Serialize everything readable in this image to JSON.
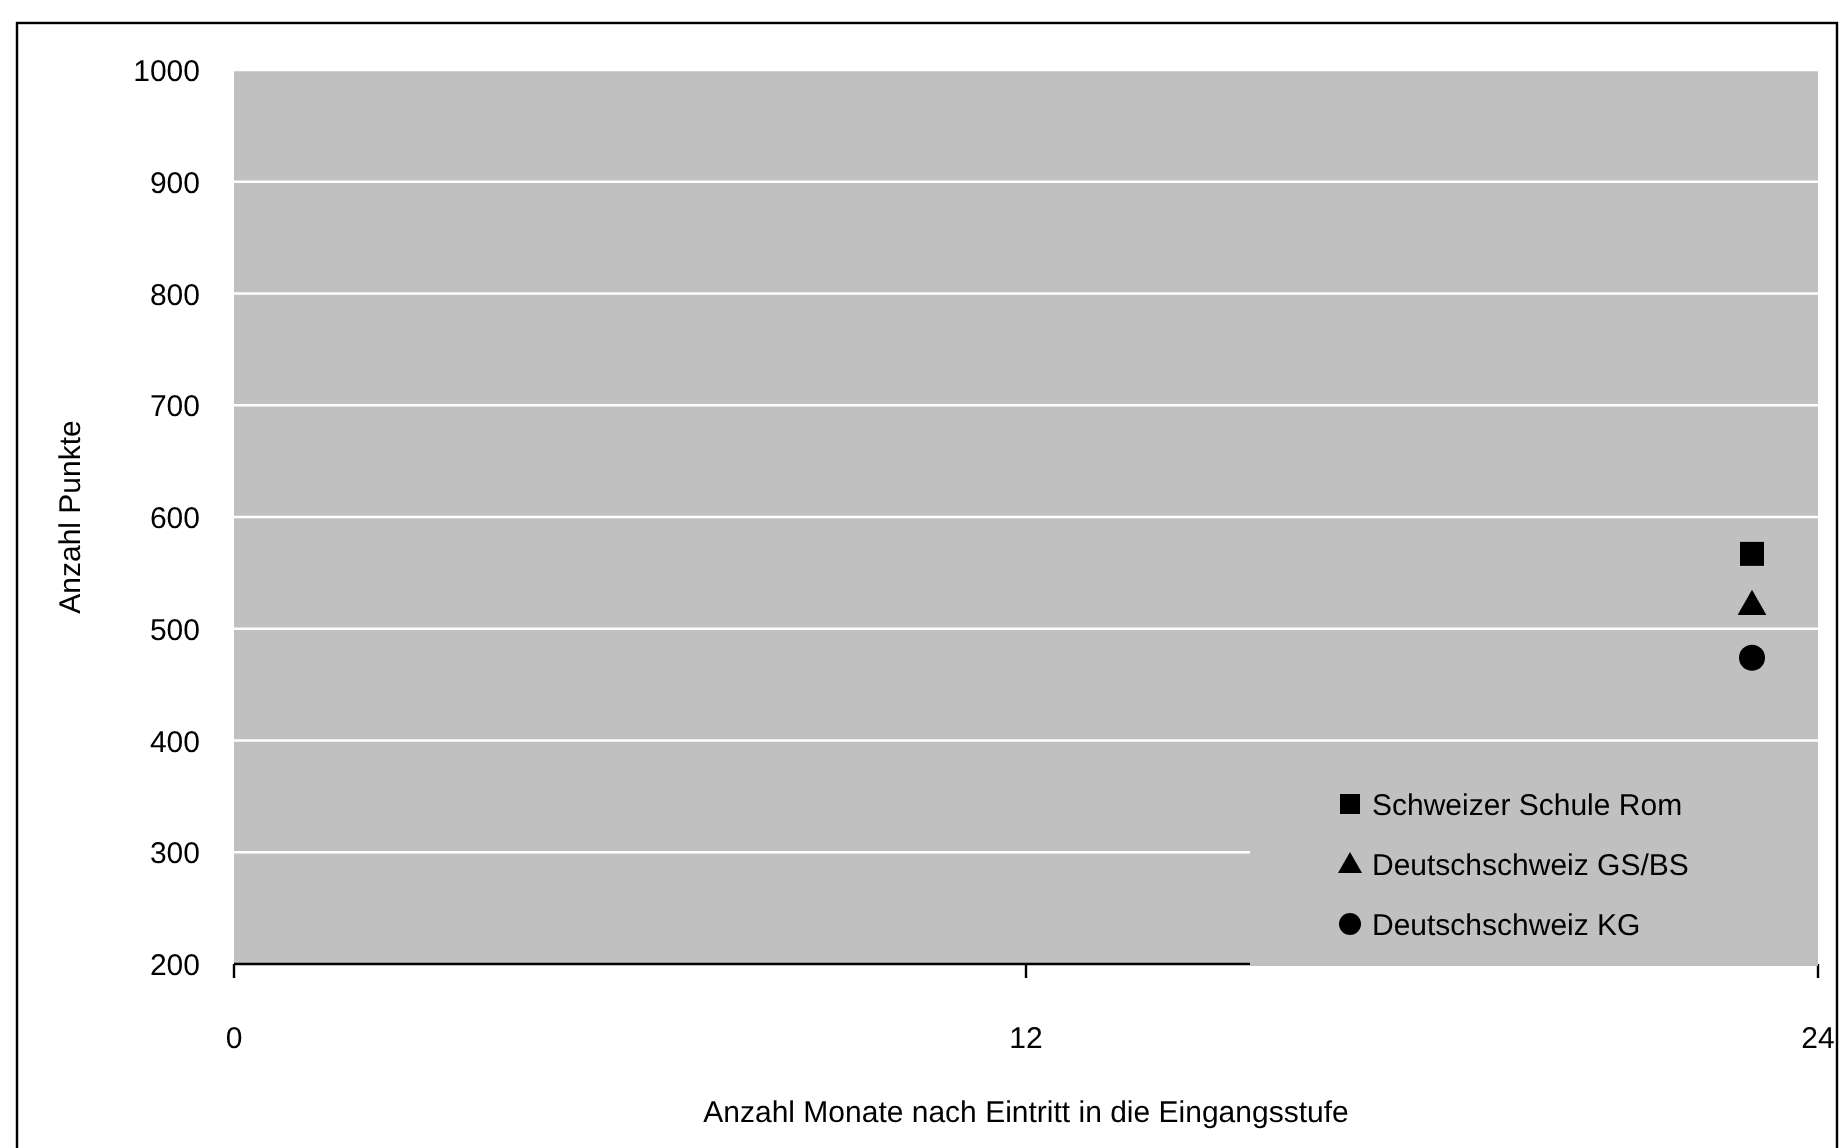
{
  "chart_data": {
    "type": "scatter",
    "xlabel": "Anzahl Monate nach Eintritt in die Eingangsstufe",
    "ylabel": "Anzahl Punkte",
    "x": [
      23
    ],
    "series": [
      {
        "name": "Schweizer Schule Rom",
        "color": "#000000",
        "marker": "square",
        "values": [
          567
        ]
      },
      {
        "name": "Deutschschweiz GS/BS",
        "color": "#000000",
        "marker": "triangle",
        "values": [
          522
        ]
      },
      {
        "name": "Deutschschweiz KG",
        "color": "#000000",
        "marker": "circle",
        "values": [
          474
        ]
      }
    ],
    "xlim": [
      0,
      24
    ],
    "xticks": [
      0,
      12,
      24
    ],
    "ylim": [
      200,
      1000
    ],
    "yticks": [
      200,
      300,
      400,
      500,
      600,
      700,
      800,
      900,
      1000
    ],
    "grid": "y",
    "legend": "bottom right"
  }
}
